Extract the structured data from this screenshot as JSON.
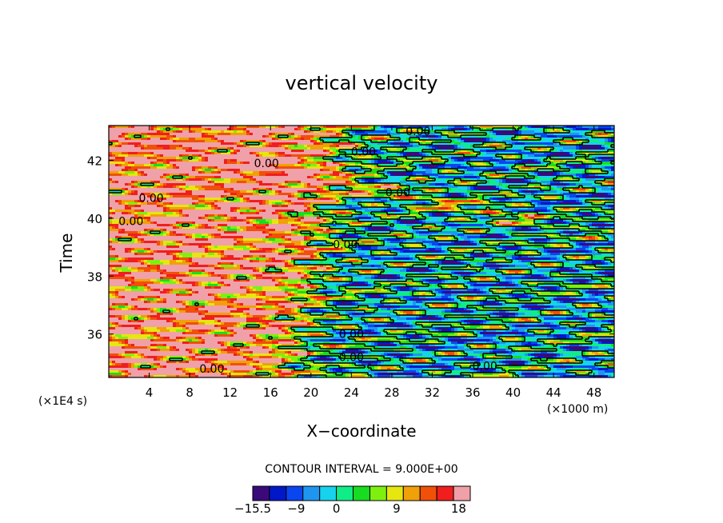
{
  "chart_data": {
    "type": "heatmap",
    "title": "vertical velocity",
    "xlabel": "X−coordinate",
    "ylabel": "Time",
    "x_unit_label": "(×1000 m)",
    "y_unit_label": "(×1E4 s)",
    "xlim": [
      0,
      50
    ],
    "ylim": [
      34.5,
      43.2
    ],
    "x_ticks": [
      "4",
      "8",
      "12",
      "16",
      "20",
      "24",
      "28",
      "32",
      "36",
      "40",
      "44",
      "48"
    ],
    "y_ticks": [
      "36",
      "38",
      "40",
      "42"
    ],
    "contour_interval_text": "CONTOUR INTERVAL = 9.000E+00",
    "contour_labels": [
      {
        "text": "0.00",
        "x": 30.6,
        "y": 43.0
      },
      {
        "text": "0.00",
        "x": 25.2,
        "y": 42.3
      },
      {
        "text": "0.00",
        "x": 15.6,
        "y": 41.9
      },
      {
        "text": "0.00",
        "x": 28.6,
        "y": 40.9
      },
      {
        "text": "0.00",
        "x": 4.2,
        "y": 40.7
      },
      {
        "text": "0.00",
        "x": 2.2,
        "y": 39.9
      },
      {
        "text": "0.00",
        "x": 23.4,
        "y": 39.1
      },
      {
        "text": "0.00",
        "x": 24.0,
        "y": 36.0
      },
      {
        "text": "0.00",
        "x": 24.0,
        "y": 35.2
      },
      {
        "text": "0.00",
        "x": 37.2,
        "y": 34.9
      },
      {
        "text": "0.00",
        "x": 10.2,
        "y": 34.8
      }
    ],
    "colorbar": {
      "colors": [
        "#3a0a7a",
        "#0018c8",
        "#0a46f0",
        "#1e96f0",
        "#16d2ec",
        "#10ec88",
        "#18dc20",
        "#7ef010",
        "#e6e610",
        "#f0a008",
        "#f05008",
        "#f01e1e",
        "#f0a0a8"
      ],
      "tick_labels": [
        "−15.5",
        "−9",
        "0",
        "9",
        "18"
      ]
    }
  }
}
